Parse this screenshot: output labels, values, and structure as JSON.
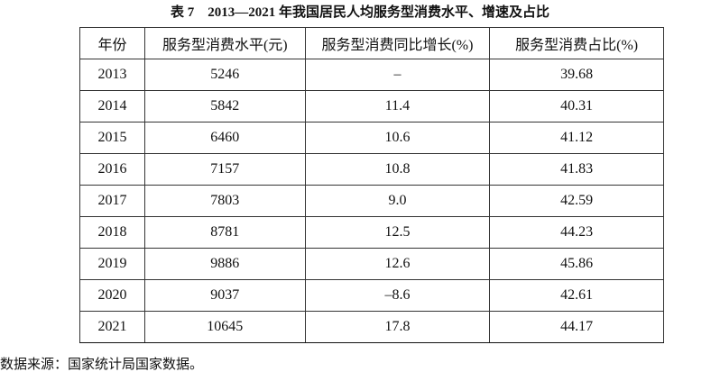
{
  "title": "表 7　2013—2021 年我国居民人均服务型消费水平、增速及占比",
  "table": {
    "header": [
      "年份",
      "服务型消费水平(元)",
      "服务型消费同比增长(%)",
      "服务型消费占比(%)"
    ],
    "rows": [
      [
        "2013",
        "5246",
        "–",
        "39.68"
      ],
      [
        "2014",
        "5842",
        "11.4",
        "40.31"
      ],
      [
        "2015",
        "6460",
        "10.6",
        "41.12"
      ],
      [
        "2016",
        "7157",
        "10.8",
        "41.83"
      ],
      [
        "2017",
        "7803",
        "9.0",
        "42.59"
      ],
      [
        "2018",
        "8781",
        "12.5",
        "44.23"
      ],
      [
        "2019",
        "9886",
        "12.6",
        "45.86"
      ],
      [
        "2020",
        "9037",
        "–8.6",
        "42.61"
      ],
      [
        "2021",
        "10645",
        "17.8",
        "44.17"
      ]
    ]
  },
  "source": "数据来源：国家统计局国家数据。"
}
